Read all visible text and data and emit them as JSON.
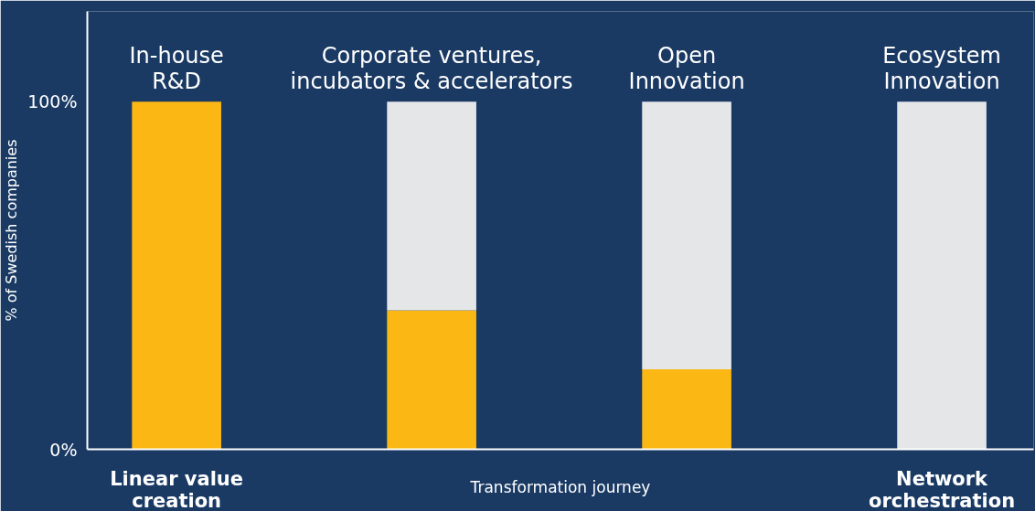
{
  "chart_data": {
    "type": "bar",
    "stacked": true,
    "categories": [
      "In-house\nR&D",
      "Corporate ventures,\nincubators & accelerators",
      "Open\nInnovation",
      "Ecosystem\nInnovation"
    ],
    "series": [
      {
        "color": "#fbb713",
        "values": [
          100,
          40,
          23,
          0
        ]
      },
      {
        "color": "#e5e6e8",
        "values": [
          0,
          60,
          77,
          100
        ]
      }
    ],
    "ylim": [
      0,
      126
    ],
    "yticks": [
      {
        "value": 0,
        "label": "0%"
      },
      {
        "value": 100,
        "label": "100%"
      }
    ],
    "ylabel": "% of Swedish companies",
    "xlabel": "Transformation journey",
    "annotations": [
      "Linear value\ncreation",
      "Network\norchestration"
    ],
    "grid": false
  }
}
